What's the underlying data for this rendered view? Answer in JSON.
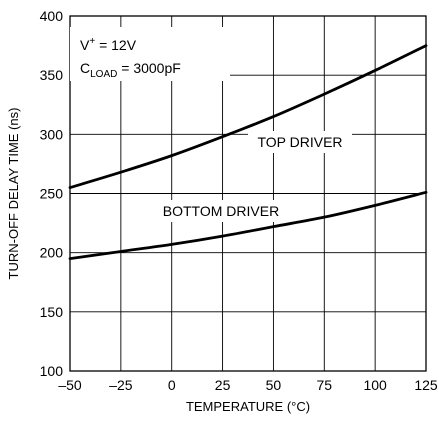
{
  "chart_data": {
    "type": "line",
    "xlabel": "TEMPERATURE (°C)",
    "ylabel": "TURN-OFF DELAY TIME (ns)",
    "xlim": [
      -50,
      125
    ],
    "ylim": [
      100,
      400
    ],
    "x_ticks": [
      -50,
      -25,
      0,
      25,
      50,
      75,
      100,
      125
    ],
    "y_ticks": [
      100,
      150,
      200,
      250,
      300,
      350,
      400
    ],
    "x_tick_labels": [
      "–50",
      "–25",
      "0",
      "25",
      "50",
      "75",
      "100",
      "125"
    ],
    "y_tick_labels": [
      "100",
      "150",
      "200",
      "250",
      "300",
      "350",
      "400"
    ],
    "grid": true,
    "conditions": {
      "supply": {
        "symbol": "V",
        "superscript": "+",
        "value": " = 12V"
      },
      "load": {
        "symbol": "C",
        "subscript": "LOAD",
        "value": " = 3000pF"
      }
    },
    "series": [
      {
        "name": "TOP DRIVER",
        "x": [
          -50,
          -25,
          0,
          25,
          50,
          75,
          100,
          125
        ],
        "values": [
          255,
          268,
          282,
          298,
          315,
          334,
          354,
          375
        ]
      },
      {
        "name": "BOTTOM DRIVER",
        "x": [
          -50,
          -25,
          0,
          25,
          50,
          75,
          100,
          125
        ],
        "values": [
          195,
          201,
          207,
          214,
          222,
          230,
          240,
          251
        ]
      }
    ]
  }
}
